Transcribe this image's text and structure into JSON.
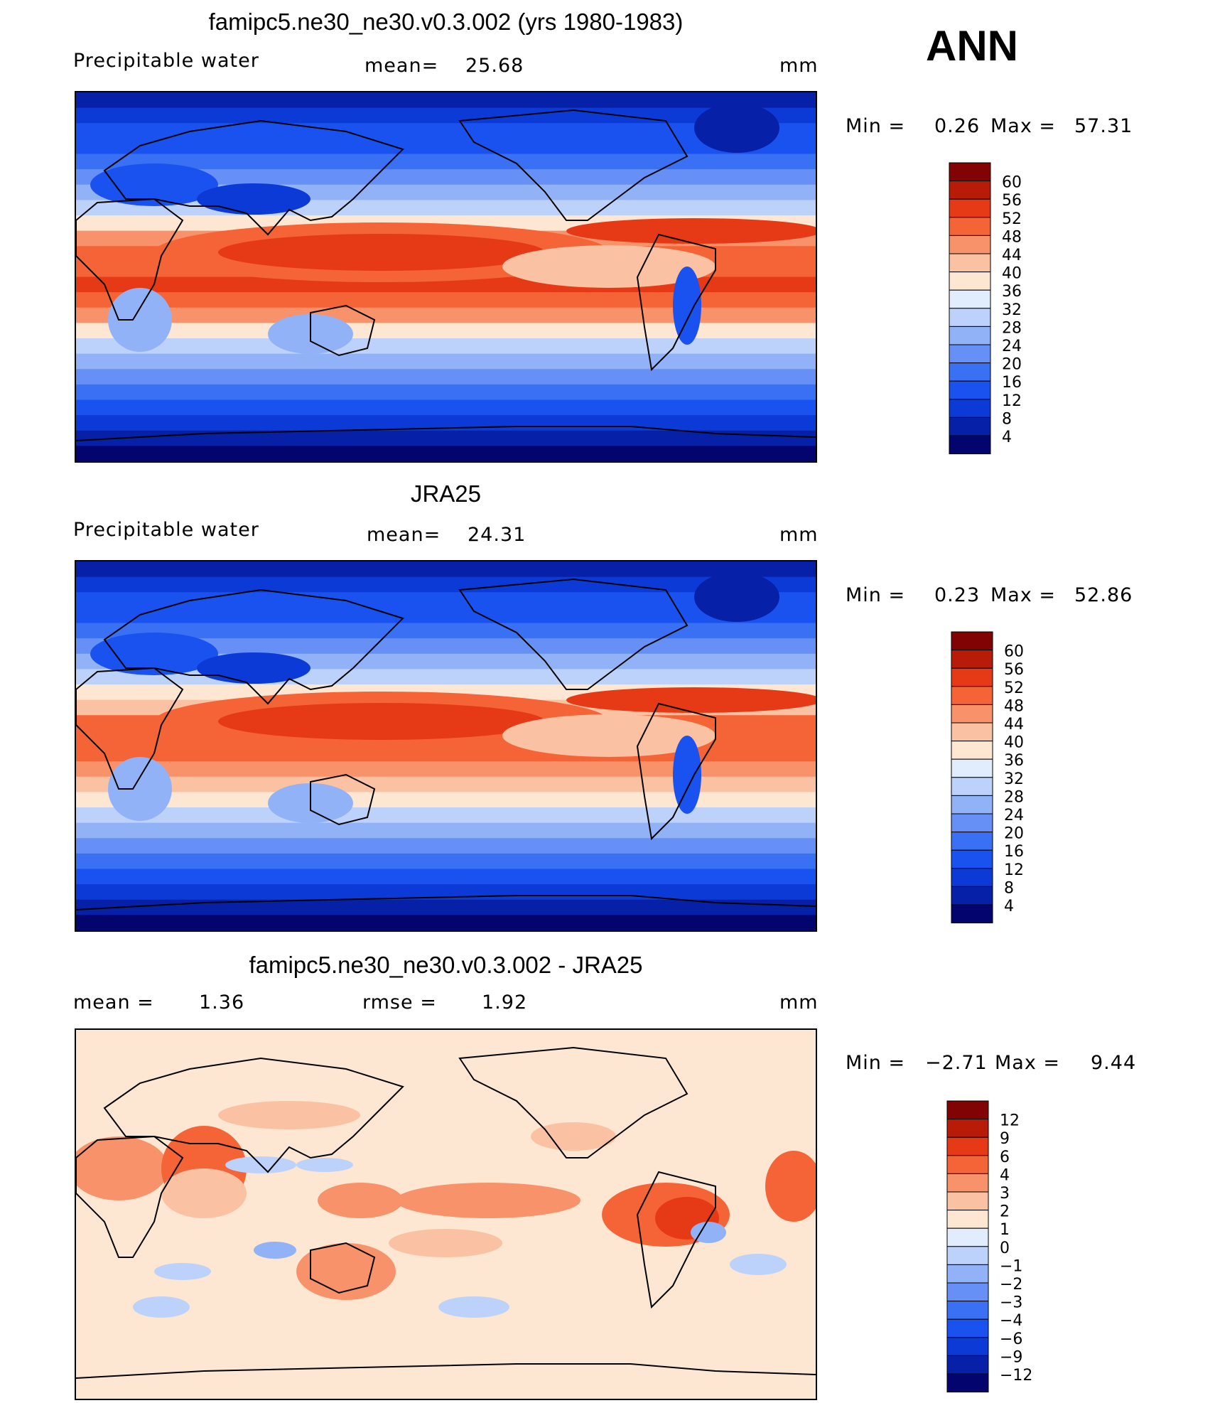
{
  "season": "ANN",
  "panels": [
    {
      "title": "famipc5.ne30_ne30.v0.3.002 (yrs 1980-1983)",
      "left_label": "Precipitable water",
      "mid_label": "mean=",
      "mid_value": "25.68",
      "units": "mm",
      "min_label": "Min =",
      "min_value": "0.26",
      "max_label": "Max =",
      "max_value": "57.31"
    },
    {
      "title": "JRA25",
      "left_label": "Precipitable water",
      "mid_label": "mean=",
      "mid_value": "24.31",
      "units": "mm",
      "min_label": "Min =",
      "min_value": "0.23",
      "max_label": "Max =",
      "max_value": "52.86"
    },
    {
      "title": "famipc5.ne30_ne30.v0.3.002 - JRA25",
      "left_label": "mean =",
      "left_value": "1.36",
      "mid_label": "rmse =",
      "mid_value": "1.92",
      "units": "mm",
      "min_label": "Min =",
      "min_value": "−2.71",
      "max_label": "Max =",
      "max_value": "9.44"
    }
  ],
  "chart_data": [
    {
      "type": "heatmap",
      "title": "famipc5.ne30_ne30.v0.3.002 (yrs 1980-1983)",
      "variable": "Precipitable water",
      "units": "mm",
      "mean": 25.68,
      "min": 0.26,
      "max": 57.31,
      "colorbar_levels": [
        4,
        8,
        12,
        16,
        20,
        24,
        28,
        32,
        36,
        40,
        44,
        48,
        52,
        56,
        60
      ],
      "colorbar_colors": [
        "#04046e",
        "#0620a8",
        "#0c3ad6",
        "#1a52f0",
        "#3a70f4",
        "#6690f5",
        "#92b2f8",
        "#bcd2fb",
        "#e1ecfd",
        "#fde7d3",
        "#fbc1a3",
        "#f8926a",
        "#f56436",
        "#e63a16",
        "#b81c08",
        "#820303"
      ],
      "zonal_profile_description": "moist deep tropics (~48-56 mm) over Indo-Pacific warm pool, decreasing poleward to <8 mm at high latitudes"
    },
    {
      "type": "heatmap",
      "title": "JRA25",
      "variable": "Precipitable water",
      "units": "mm",
      "mean": 24.31,
      "min": 0.23,
      "max": 52.86,
      "colorbar_levels": [
        4,
        8,
        12,
        16,
        20,
        24,
        28,
        32,
        36,
        40,
        44,
        48,
        52,
        56,
        60
      ],
      "colorbar_colors": [
        "#04046e",
        "#0620a8",
        "#0c3ad6",
        "#1a52f0",
        "#3a70f4",
        "#6690f5",
        "#92b2f8",
        "#bcd2fb",
        "#e1ecfd",
        "#fde7d3",
        "#fbc1a3",
        "#f8926a",
        "#f56436",
        "#e63a16",
        "#b81c08",
        "#820303"
      ]
    },
    {
      "type": "heatmap",
      "title": "famipc5.ne30_ne30.v0.3.002 - JRA25",
      "units": "mm",
      "mean": 1.36,
      "rmse": 1.92,
      "min": -2.71,
      "max": 9.44,
      "colorbar_levels": [
        -12,
        -9,
        -6,
        -4,
        -3,
        -2,
        -1,
        0,
        1,
        2,
        3,
        4,
        6,
        9,
        12
      ],
      "colorbar_colors": [
        "#04046e",
        "#0620a8",
        "#0c3ad6",
        "#1a52f0",
        "#3a70f4",
        "#6690f5",
        "#92b2f8",
        "#bcd2fb",
        "#e1ecfd",
        "#fde7d3",
        "#fbc1a3",
        "#f8926a",
        "#f56436",
        "#e63a16",
        "#b81c08",
        "#820303"
      ]
    }
  ],
  "colorbars": [
    [
      "60",
      "56",
      "52",
      "48",
      "44",
      "40",
      "36",
      "32",
      "28",
      "24",
      "20",
      "16",
      "12",
      "8",
      "4"
    ],
    [
      "60",
      "56",
      "52",
      "48",
      "44",
      "40",
      "36",
      "32",
      "28",
      "24",
      "20",
      "16",
      "12",
      "8",
      "4"
    ],
    [
      "12",
      "9",
      "6",
      "4",
      "3",
      "2",
      "1",
      "0",
      "−1",
      "−2",
      "−3",
      "−4",
      "−6",
      "−9",
      "−12"
    ]
  ],
  "palette": [
    "#820303",
    "#b81c08",
    "#e63a16",
    "#f56436",
    "#f8926a",
    "#fbc1a3",
    "#fde7d3",
    "#e1ecfd",
    "#bcd2fb",
    "#92b2f8",
    "#6690f5",
    "#3a70f4",
    "#1a52f0",
    "#0c3ad6",
    "#0620a8",
    "#04046e"
  ]
}
